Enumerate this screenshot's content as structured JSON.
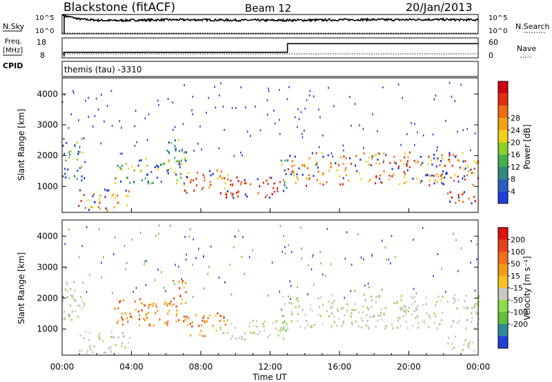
{
  "header": {
    "station": "Blackstone (fitACF)",
    "beam": "Beam 12",
    "date": "20/Jan/2013"
  },
  "strip_labels": {
    "nsky": "N.Sky",
    "nsearch": "N.Search",
    "freq": "Freq.",
    "freq_unit": "[MHz]",
    "nave": "Nave",
    "cpid": "CPID",
    "cpid_value": "themis (tau) -3310"
  },
  "chart_data": [
    {
      "type": "line",
      "name": "noise",
      "x_range_hours": [
        0,
        24
      ],
      "left_ticks": [
        "10^5",
        "10^0"
      ],
      "right_ticks": [
        "10^5",
        "10^0"
      ],
      "nsky_level": [
        1.0,
        0.78,
        0.72,
        0.7,
        0.72,
        0.73,
        0.74,
        0.74,
        0.74,
        0.73,
        0.72,
        0.72,
        0.71,
        0.72,
        0.72,
        0.73,
        0.74,
        0.75,
        0.75,
        0.74,
        0.75,
        0.76,
        0.75,
        0.74,
        0.74
      ],
      "nsearch_level": 0.0
    },
    {
      "type": "line",
      "name": "frequency",
      "x_range_hours": [
        0,
        24
      ],
      "left_ticks": [
        "18",
        "8"
      ],
      "right_ticks": [
        "60",
        "0"
      ],
      "freq_steps": [
        {
          "from": 0.1,
          "to": 13.0,
          "value": 10.5
        },
        {
          "from": 13.0,
          "to": 24.0,
          "value": 15.5
        }
      ],
      "freq_range": [
        8,
        18
      ],
      "nave_level": 0.5
    },
    {
      "type": "heatmap",
      "name": "power",
      "ylabel": "Slant Range [km]",
      "y_ticks": [
        "1000",
        "2000",
        "3000",
        "4000"
      ],
      "ylim": [
        180,
        4500
      ],
      "colorbar_label": "Power [dB]",
      "colorbar_ticks": [
        "4",
        "8",
        "12",
        "16",
        "20",
        "24",
        "28"
      ],
      "colorbar_colors": [
        "#1f3fd8",
        "#2a5fc0",
        "#2e8a7a",
        "#44b04a",
        "#8ccf2a",
        "#f0d21c",
        "#f4a018",
        "#f06a12",
        "#e03010",
        "#d00010"
      ]
    },
    {
      "type": "heatmap",
      "name": "velocity",
      "ylabel": "Slant Range [km]",
      "y_ticks": [
        "1000",
        "2000",
        "3000",
        "4000"
      ],
      "ylim": [
        180,
        4500
      ],
      "colorbar_label": "Velocity [m s⁻¹]",
      "colorbar_ticks": [
        "200",
        "100",
        "50",
        "15",
        "-15",
        "-50",
        "-100",
        "-200"
      ],
      "colorbar_colors": [
        "#1f3fd8",
        "#2f8a9a",
        "#5fbf3a",
        "#8fdc4a",
        "#c8c8c0",
        "#f7c020",
        "#f59a18",
        "#f0701a",
        "#e8401a",
        "#e01010"
      ]
    }
  ],
  "time_axis": {
    "ticks": [
      "00:00",
      "04:00",
      "08:00",
      "12:00",
      "16:00",
      "20:00",
      "00:00"
    ],
    "label": "Time UT"
  },
  "echo_regions": [
    {
      "t0": 0.0,
      "t1": 1.3,
      "r0": 1200,
      "r1": 2600,
      "pc": "green",
      "vc": "grey"
    },
    {
      "t0": 0.9,
      "t1": 3.9,
      "r0": 250,
      "r1": 950,
      "pc": "orange",
      "vc": "grey"
    },
    {
      "t0": 3.0,
      "t1": 7.2,
      "r0": 1100,
      "r1": 2000,
      "pc": "green",
      "vc": "orange"
    },
    {
      "t0": 6.0,
      "t1": 7.1,
      "r0": 1800,
      "r1": 2600,
      "pc": "green",
      "vc": "orange"
    },
    {
      "t0": 7.0,
      "t1": 9.6,
      "r0": 800,
      "r1": 1550,
      "pc": "orange",
      "vc": "orange"
    },
    {
      "t0": 9.0,
      "t1": 12.8,
      "r0": 650,
      "r1": 1350,
      "pc": "red",
      "vc": "grey"
    },
    {
      "t0": 12.6,
      "t1": 13.0,
      "r0": 900,
      "r1": 2100,
      "pc": "green",
      "vc": "green"
    },
    {
      "t0": 13.0,
      "t1": 24.0,
      "r0": 1050,
      "r1": 2150,
      "pc": "orange",
      "vc": "grey"
    },
    {
      "t0": 22.2,
      "t1": 23.8,
      "r0": 300,
      "r1": 850,
      "pc": "red",
      "vc": "grey"
    }
  ]
}
